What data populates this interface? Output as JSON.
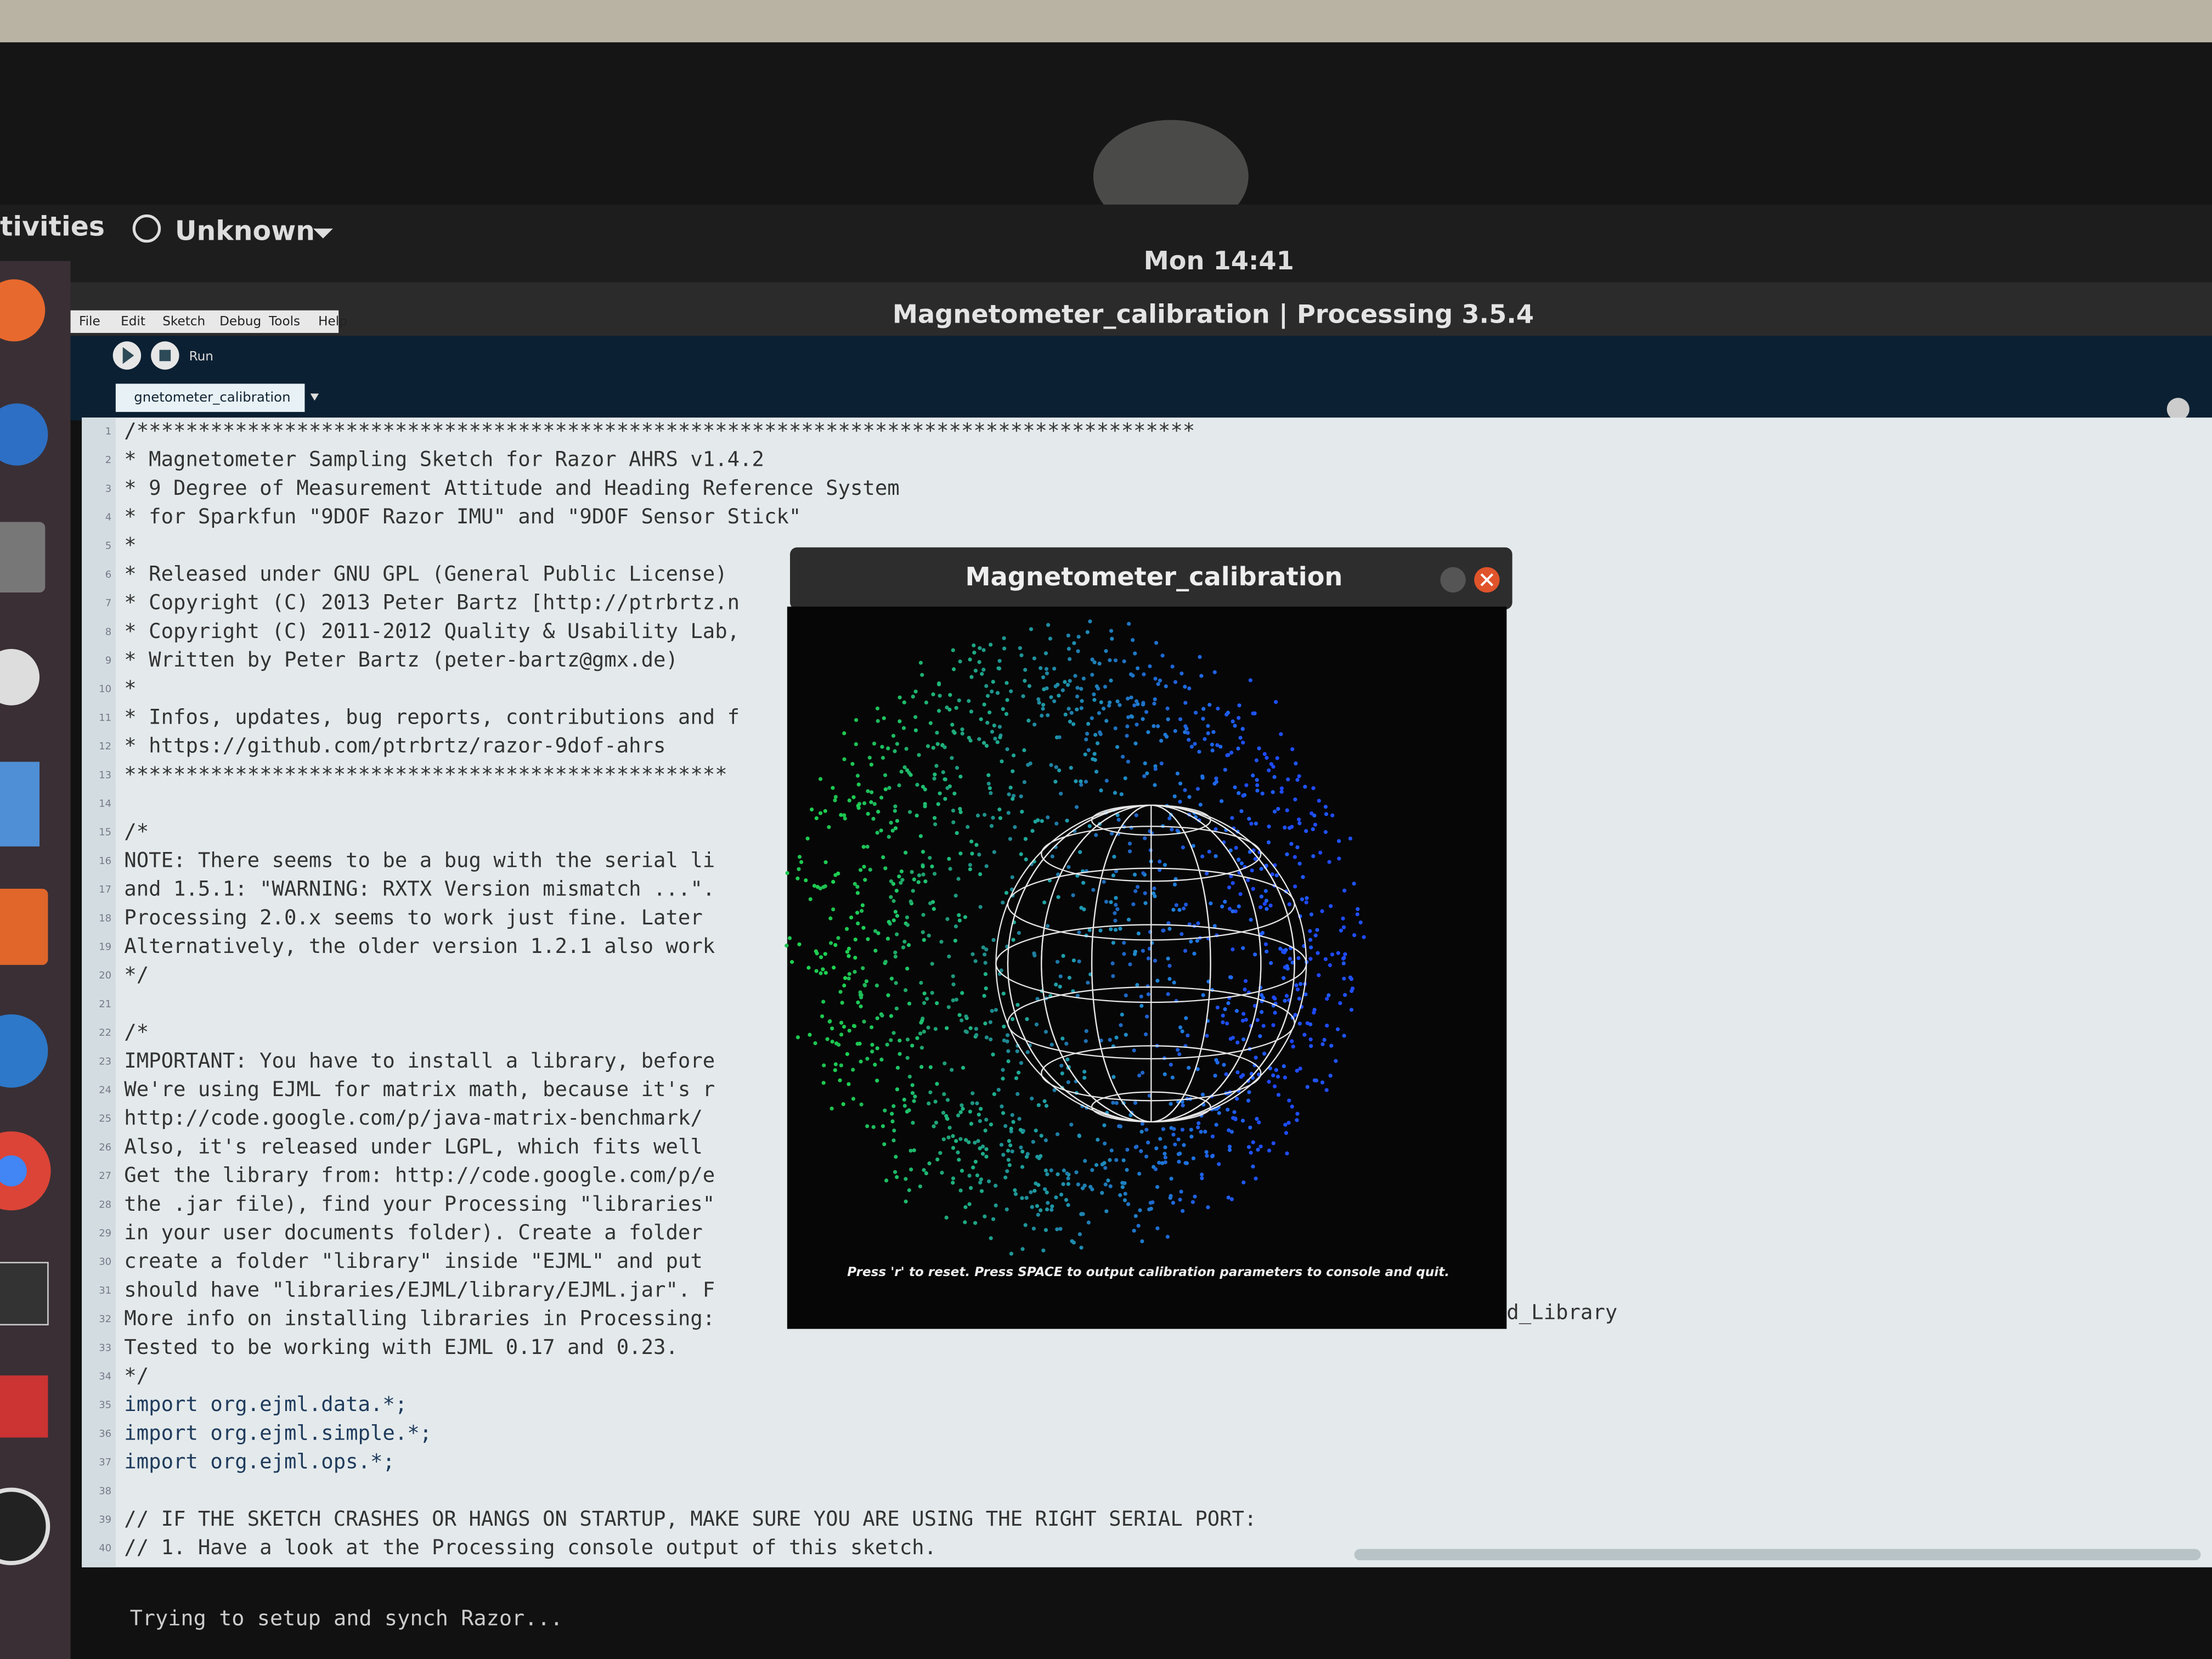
{
  "topbar": {
    "activities": "tivities",
    "app_menu": "Unknown",
    "clock": "Mon 14:41"
  },
  "window": {
    "title": "Magnetometer_calibration | Processing 3.5.4",
    "menu": [
      "File",
      "Edit",
      "Sketch",
      "Debug",
      "Tools",
      "Help"
    ],
    "toolbar_label": "Run",
    "tab": "gnetometer_calibration"
  },
  "editor": {
    "lines": [
      {
        "num": 1,
        "text": "/**************************************************************************************"
      },
      {
        "num": 2,
        "text": "* Magnetometer Sampling Sketch for Razor AHRS v1.4.2"
      },
      {
        "num": 3,
        "text": "* 9 Degree of Measurement Attitude and Heading Reference System"
      },
      {
        "num": 4,
        "text": "* for Sparkfun \"9DOF Razor IMU\" and \"9DOF Sensor Stick\""
      },
      {
        "num": 5,
        "text": "*"
      },
      {
        "num": 6,
        "text": "* Released under GNU GPL (General Public License)"
      },
      {
        "num": 7,
        "text": "* Copyright (C) 2013 Peter Bartz [http://ptrbrtz.n"
      },
      {
        "num": 8,
        "text": "* Copyright (C) 2011-2012 Quality & Usability Lab,"
      },
      {
        "num": 9,
        "text": "* Written by Peter Bartz (peter-bartz@gmx.de)"
      },
      {
        "num": 10,
        "text": "*"
      },
      {
        "num": 11,
        "text": "* Infos, updates, bug reports, contributions and f"
      },
      {
        "num": 12,
        "text": "*     https://github.com/ptrbrtz/razor-9dof-ahrs"
      },
      {
        "num": 13,
        "text": "*************************************************"
      },
      {
        "num": 14
      },
      {
        "num": 15,
        "text": "/*"
      },
      {
        "num": 16,
        "text": "  NOTE: There seems to be a bug with the serial li"
      },
      {
        "num": 17,
        "text": "  and 1.5.1: \"WARNING: RXTX Version mismatch ...\"."
      },
      {
        "num": 18,
        "text": "  Processing 2.0.x seems to work just fine. Later"
      },
      {
        "num": 19,
        "text": "  Alternatively, the older version 1.2.1 also work"
      },
      {
        "num": 20,
        "text": "*/"
      },
      {
        "num": 21
      },
      {
        "num": 22,
        "text": "/*"
      },
      {
        "num": 23,
        "text": "  IMPORTANT: You have to install a library, before"
      },
      {
        "num": 24,
        "text": "  We're using EJML for matrix math, because it's r"
      },
      {
        "num": 25,
        "text": "  http://code.google.com/p/java-matrix-benchmark/"
      },
      {
        "num": 26,
        "text": "  Also, it's released under LGPL, which fits well"
      },
      {
        "num": 27,
        "text": "  Get the library from: http://code.google.com/p/e"
      },
      {
        "num": 28,
        "text": "  the .jar file), find your Processing \"libraries\""
      },
      {
        "num": 29,
        "text": "  in your user documents folder). Create a folder"
      },
      {
        "num": 30,
        "text": "  create a folder \"library\" inside \"EJML\" and put"
      },
      {
        "num": 31,
        "text": "  should have \"libraries/EJML/library/EJML.jar\". F"
      },
      {
        "num": 32,
        "text": "  More info on installing libraries in Processing:"
      },
      {
        "num": 33,
        "text": "  Tested to be working with EJML 0.17 and 0.23."
      },
      {
        "num": 34,
        "text": "*/"
      },
      {
        "num": 35,
        "text": "import org.ejml.data.*;"
      },
      {
        "num": 36,
        "text": "import org.ejml.simple.*;"
      },
      {
        "num": 37,
        "text": "import org.ejml.ops.*;"
      },
      {
        "num": 38
      },
      {
        "num": 39,
        "text": "// IF THE SKETCH CRASHES OR HANGS ON STARTUP, MAKE SURE YOU ARE USING THE RIGHT SERIAL PORT:"
      },
      {
        "num": 40,
        "text": "// 1. Have a look at the Processing console output of this sketch."
      }
    ],
    "line32_tail": "d_Library"
  },
  "popup": {
    "title": "Magnetometer_calibration",
    "caption": "Press 'r' to reset. Press SPACE to output calibration parameters to console and quit."
  },
  "console": {
    "text": "Trying to setup and synch Razor..."
  }
}
